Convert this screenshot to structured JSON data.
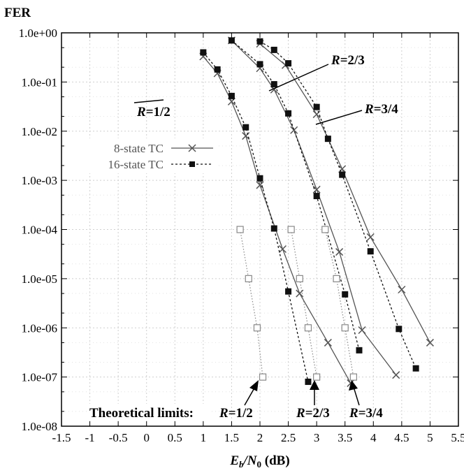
{
  "chart_data": {
    "type": "line",
    "y_axis_title": "FER",
    "x_axis_title_parts": [
      "E",
      "b",
      "/N",
      "0",
      " (dB)"
    ],
    "xlim": [
      -1.5,
      5.5
    ],
    "ylim": [
      1e-08,
      1
    ],
    "y_scale": "log",
    "grid": true,
    "x_ticks": [
      "-1.5",
      "-1",
      "-0.5",
      "0",
      "0.5",
      "1",
      "1.5",
      "2",
      "2.5",
      "3",
      "3.5",
      "4",
      "4.5",
      "5",
      "5.5"
    ],
    "y_ticks": [
      "1.0e+00",
      "1.0e-01",
      "1.0e-02",
      "1.0e-03",
      "1.0e-04",
      "1.0e-05",
      "1.0e-06",
      "1.0e-07",
      "1.0e-08"
    ],
    "legend": {
      "placement": "left",
      "entries": [
        "8-state TC",
        "16-state TC"
      ]
    },
    "series": [
      {
        "name": "8-state TC",
        "group": "R=1/2",
        "style": "solid-cross",
        "color": "#555555",
        "x": [
          1.0,
          1.25,
          1.5,
          1.75,
          2.0,
          2.4,
          2.7,
          3.2,
          3.6
        ],
        "y": [
          0.33,
          0.15,
          0.04,
          0.008,
          0.0008,
          4e-05,
          5e-06,
          5e-07,
          7.5e-08
        ]
      },
      {
        "name": "16-state TC",
        "group": "R=1/2",
        "style": "dotted-square",
        "color": "#111111",
        "x": [
          1.0,
          1.25,
          1.5,
          1.75,
          2.0,
          2.25,
          2.5,
          2.85
        ],
        "y": [
          0.4,
          0.18,
          0.052,
          0.012,
          0.0011,
          0.000105,
          5.5e-06,
          8e-08
        ]
      },
      {
        "name": "8-state TC",
        "group": "R=2/3",
        "style": "solid-cross",
        "color": "#555555",
        "x": [
          1.5,
          2.0,
          2.25,
          2.6,
          3.0,
          3.4,
          3.8,
          4.4
        ],
        "y": [
          0.7,
          0.19,
          0.07,
          0.0105,
          0.00065,
          3.5e-05,
          9e-07,
          1.1e-07
        ]
      },
      {
        "name": "16-state TC",
        "group": "R=2/3",
        "style": "dotted-square",
        "color": "#111111",
        "x": [
          1.5,
          2.0,
          2.25,
          2.5,
          3.0,
          3.5,
          3.75
        ],
        "y": [
          0.7,
          0.23,
          0.09,
          0.023,
          0.00048,
          4.8e-06,
          3.5e-07
        ]
      },
      {
        "name": "8-state TC",
        "group": "R=3/4",
        "style": "solid-cross",
        "color": "#555555",
        "x": [
          2.0,
          2.45,
          3.0,
          3.45,
          3.95,
          4.5,
          5.0
        ],
        "y": [
          0.6,
          0.22,
          0.022,
          0.0017,
          7e-05,
          6e-06,
          5e-07
        ]
      },
      {
        "name": "16-state TC",
        "group": "R=3/4",
        "style": "dotted-square",
        "color": "#111111",
        "x": [
          2.0,
          2.25,
          2.5,
          3.0,
          3.2,
          3.45,
          3.95,
          4.45,
          4.75
        ],
        "y": [
          0.67,
          0.45,
          0.24,
          0.031,
          0.007,
          0.0013,
          3.6e-05,
          9.5e-07,
          1.5e-07
        ]
      },
      {
        "name": "Theoretical limits",
        "group": "R=1/2",
        "style": "limit-square",
        "color": "#888888",
        "x": [
          1.65,
          1.8,
          1.95,
          2.05
        ],
        "y": [
          0.0001,
          1e-05,
          1e-06,
          1e-07
        ]
      },
      {
        "name": "Theoretical limits",
        "group": "R=2/3",
        "style": "limit-square",
        "color": "#888888",
        "x": [
          2.55,
          2.7,
          2.85,
          3.0
        ],
        "y": [
          0.0001,
          1e-05,
          1e-06,
          1e-07
        ]
      },
      {
        "name": "Theoretical limits",
        "group": "R=3/4",
        "style": "limit-square",
        "color": "#888888",
        "x": [
          3.15,
          3.35,
          3.5,
          3.65
        ],
        "y": [
          0.0001,
          1e-05,
          1e-06,
          1e-07
        ]
      }
    ],
    "annotations": {
      "curve_labels": [
        {
          "prefix": "R",
          "text": "=1/2",
          "target_x": 1.3,
          "target_y": 0.13
        },
        {
          "prefix": "R",
          "text": "=2/3",
          "target_x": 2.25,
          "target_y": 0.07
        },
        {
          "prefix": "R",
          "text": "=3/4",
          "target_x": 3.1,
          "target_y": 0.014
        }
      ],
      "theoretical_limits_title": "Theoretical limits:",
      "limit_labels": [
        {
          "prefix": "R",
          "text": "=1/2",
          "target_x": 2.0,
          "target_y": 1e-07
        },
        {
          "prefix": "R",
          "text": "=2/3",
          "target_x": 2.98,
          "target_y": 1e-07
        },
        {
          "prefix": "R",
          "text": "=3/4",
          "target_x": 3.7,
          "target_y": 1e-07
        }
      ]
    }
  }
}
